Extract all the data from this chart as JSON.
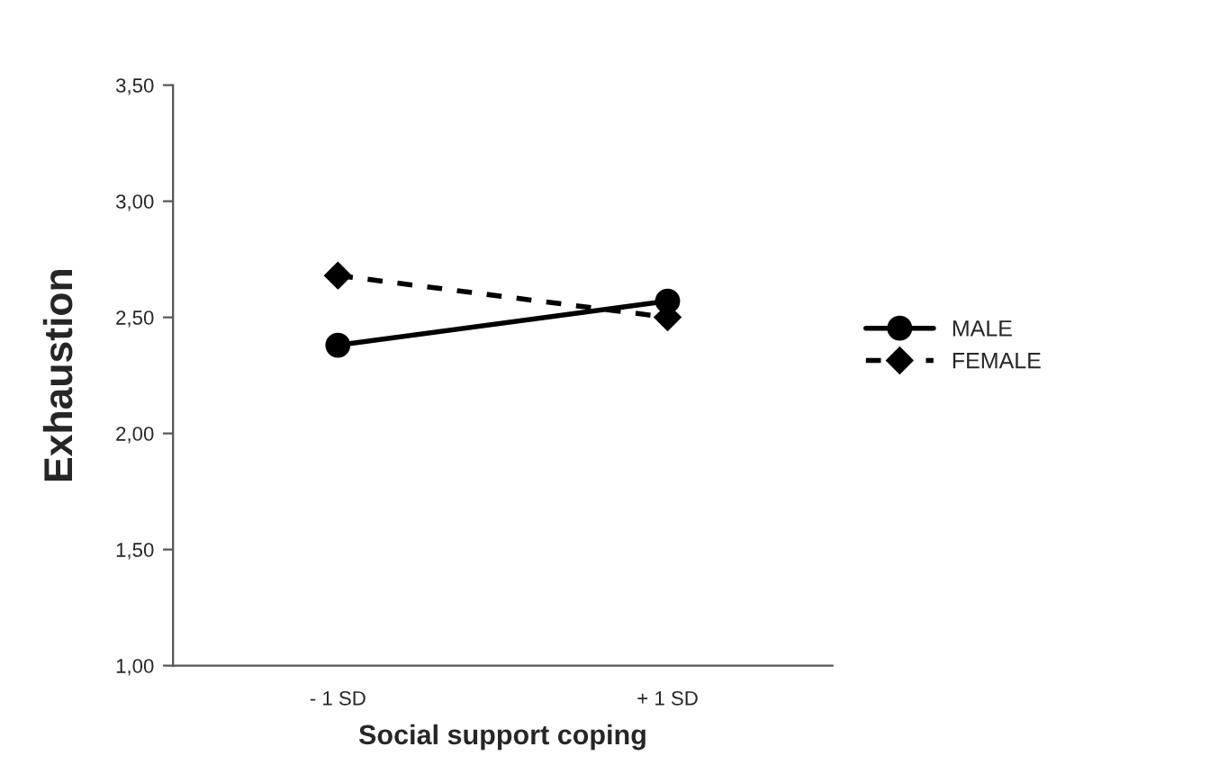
{
  "chart_data": {
    "type": "line",
    "xlabel": "Social support coping",
    "ylabel": "Exhaustion",
    "categories": [
      "- 1 SD",
      "+ 1 SD"
    ],
    "series": [
      {
        "name": "MALE",
        "color": "#000000",
        "values": [
          2.38,
          2.57
        ],
        "marker": "circle",
        "line_style": "solid"
      },
      {
        "name": "FEMALE",
        "color": "#000000",
        "values": [
          2.68,
          2.5
        ],
        "marker": "diamond",
        "line_style": "dashed"
      }
    ],
    "ylim": [
      1,
      3.5
    ],
    "yticks": [
      {
        "value": 1,
        "label": "1,00"
      },
      {
        "value": 1.5,
        "label": "1,50"
      },
      {
        "value": 2,
        "label": "2,00"
      },
      {
        "value": 2.5,
        "label": "2,50"
      },
      {
        "value": 3,
        "label": "3,00"
      },
      {
        "value": 3.5,
        "label": "3,50"
      }
    ],
    "grid": false,
    "legend": "right"
  }
}
